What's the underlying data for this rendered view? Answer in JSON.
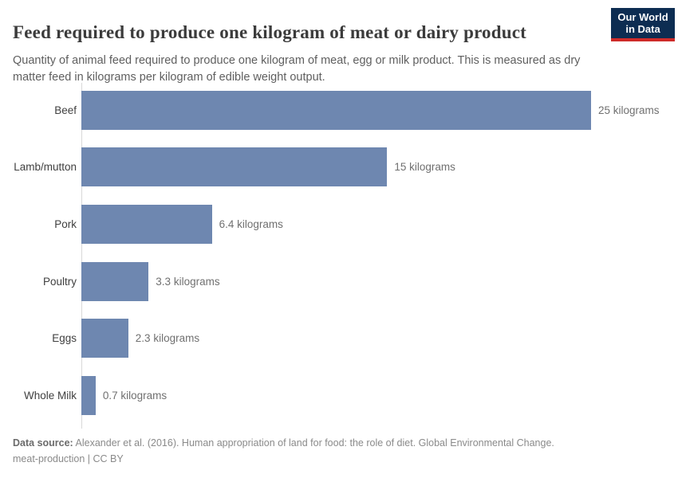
{
  "header": {
    "title": "Feed required to produce one kilogram of meat or dairy product",
    "subtitle": "Quantity of animal feed required to produce one kilogram of meat, egg or milk product. This is measured as dry matter feed in kilograms per kilogram of edible weight output.",
    "logo": {
      "line1": "Our World",
      "line2": "in Data",
      "bg_color": "#0d2d52",
      "stripe_color": "#cf2b29"
    }
  },
  "chart_data": {
    "type": "bar",
    "orientation": "horizontal",
    "title": "Feed required to produce one kilogram of meat or dairy product",
    "xlabel": "",
    "ylabel": "",
    "categories": [
      "Beef",
      "Lamb/mutton",
      "Pork",
      "Poultry",
      "Eggs",
      "Whole Milk"
    ],
    "values": [
      25,
      15,
      6.4,
      3.3,
      2.3,
      0.7
    ],
    "unit": "kilograms",
    "value_labels": [
      "25 kilograms",
      "15 kilograms",
      "6.4 kilograms",
      "3.3 kilograms",
      "2.3 kilograms",
      "0.7 kilograms"
    ],
    "xlim": [
      0,
      25
    ],
    "grid": false,
    "legend": false,
    "bar_color": "#6e87b0",
    "axis_color": "#d9d9d9"
  },
  "footer": {
    "source_label": "Data source:",
    "source_text": " Alexander et al. (2016). Human appropriation of land for food: the role of diet. Global Environmental Change.",
    "attribution": "meat-production | CC BY"
  }
}
